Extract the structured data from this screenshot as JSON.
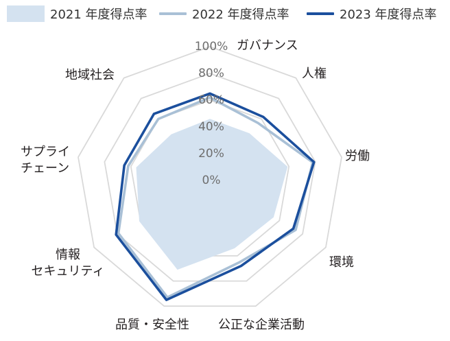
{
  "chart_data": {
    "type": "radar",
    "categories": [
      "ガバナンス",
      "人権",
      "労働",
      "環境",
      "公正な企業活動",
      "品質・安全性",
      "情報\nセキュリティ",
      "サプライ\nチェーン",
      "地域社会"
    ],
    "series": [
      {
        "name": "2021 年度得点率",
        "values": [
          46,
          46,
          59,
          55,
          54,
          71,
          61,
          56,
          45
        ],
        "color": "#d4e2f0",
        "style": "filled"
      },
      {
        "name": "2022 年度得点率",
        "values": [
          62,
          56,
          78,
          74,
          65,
          93,
          79,
          62,
          60
        ],
        "color": "#a9c0d6",
        "style": "line"
      },
      {
        "name": "2023 年度得点率",
        "values": [
          65,
          62,
          79,
          72,
          68,
          95,
          81,
          65,
          65
        ],
        "color": "#1b4f9d",
        "style": "line"
      }
    ],
    "rlim": [
      0,
      100
    ],
    "ticks": [
      0,
      20,
      40,
      60,
      80,
      100
    ],
    "tick_labels": [
      "0%",
      "20%",
      "40%",
      "60%",
      "80%",
      "100%"
    ],
    "grid": true,
    "grid_color": "#d9d9d9",
    "legend_position": "top"
  }
}
